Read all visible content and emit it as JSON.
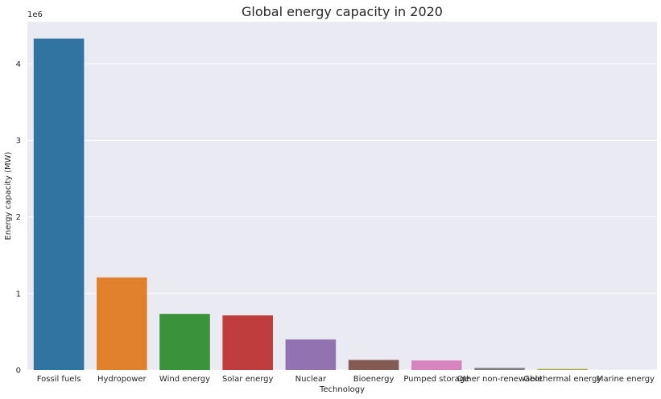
{
  "chart_data": {
    "type": "bar",
    "title": "Global energy capacity in 2020",
    "xlabel": "Technology",
    "ylabel": "Energy capacity (MW)",
    "y_offset_label": "1e6",
    "ylim": [
      0,
      4550000
    ],
    "yticks": [
      0,
      1000000,
      2000000,
      3000000,
      4000000
    ],
    "ytick_labels": [
      "0",
      "1",
      "2",
      "3",
      "4"
    ],
    "grid": true,
    "categories": [
      "Fossil fuels",
      "Hydropower",
      "Wind energy",
      "Solar energy",
      "Nuclear",
      "Bioenergy",
      "Pumped storage",
      "Other non-renewable",
      "Geothermal energy",
      "Marine energy"
    ],
    "values": [
      4330000,
      1210000,
      733000,
      714000,
      400000,
      132000,
      125000,
      28000,
      14000,
      500
    ],
    "colors": [
      "#3274a1",
      "#e1812c",
      "#3a923a",
      "#c03d3e",
      "#9372b2",
      "#845b53",
      "#d684bd",
      "#7f7f7f",
      "#a9aa35",
      "#2ea8b4"
    ],
    "background_color": "#eaeaf2",
    "grid_color": "#ffffff"
  }
}
